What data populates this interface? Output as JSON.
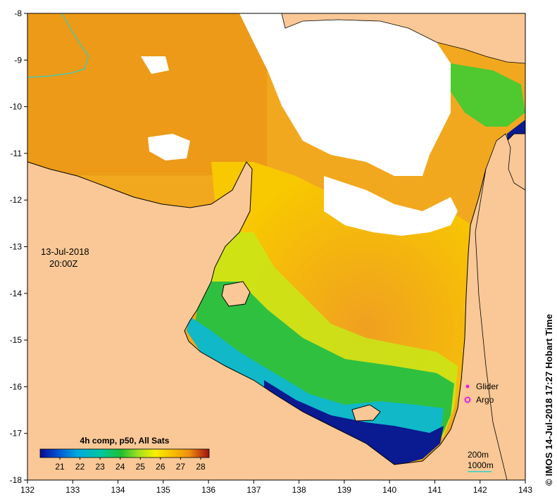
{
  "map": {
    "date_line": "13-Jul-2018",
    "time_line": "20:00Z",
    "credit": "©  IMOS 14-Jul-2018 17:27 Hobart Time",
    "lon_ticks": [
      132,
      133,
      134,
      135,
      136,
      137,
      138,
      139,
      140,
      141,
      142,
      143
    ],
    "lat_ticks": [
      -8,
      -9,
      -10,
      -11,
      -12,
      -13,
      -14,
      -15,
      -16,
      -17,
      -18
    ],
    "lon_range": [
      132,
      143
    ],
    "lat_range": [
      -18,
      -8
    ],
    "colors": {
      "land": "#f9c896",
      "nodata": "#ffffff",
      "coast": "#000000",
      "isobath_200": "#2ecfc7",
      "isobath_1000": "#2ecfc7"
    }
  },
  "legend": {
    "glider_label": "Glider",
    "argo_label": "Argo",
    "glider_color": "#e020e0",
    "argo_color": "#e020e0",
    "isobath_200_label": "200m",
    "isobath_1000_label": "1000m"
  },
  "colorbar": {
    "title": "4h comp, p50, All Sats",
    "ticks": [
      "21",
      "22",
      "23",
      "24",
      "25",
      "26",
      "27",
      "28"
    ],
    "colors": [
      "#0a0a90",
      "#0050d0",
      "#00a8e0",
      "#00c8a0",
      "#20c030",
      "#a0e020",
      "#f8f000",
      "#f8c000",
      "#f09010",
      "#d84010",
      "#a01010"
    ]
  }
}
